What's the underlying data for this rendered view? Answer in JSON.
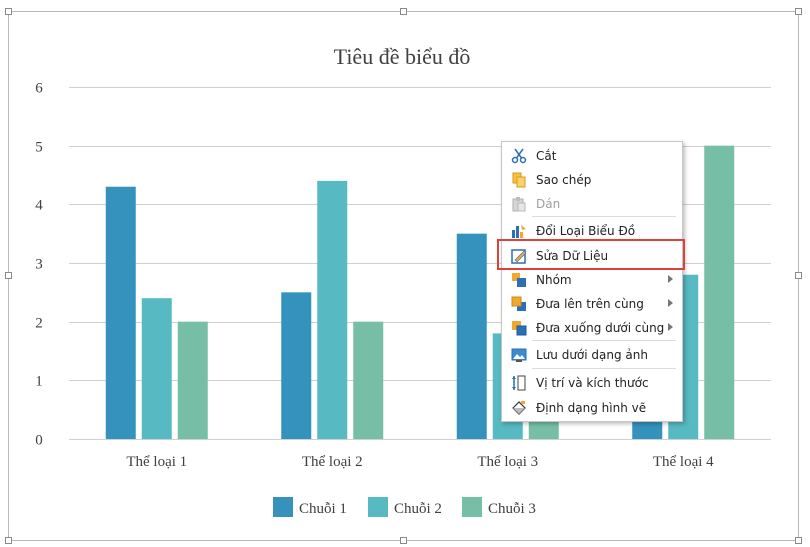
{
  "chart_data": {
    "type": "bar",
    "title": "Tiêu đề biểu đồ",
    "categories": [
      "Thể loại 1",
      "Thể loại 2",
      "Thể loại 3",
      "Thể loại 4"
    ],
    "series": [
      {
        "name": "Chuỗi 1",
        "values": [
          4.3,
          2.5,
          3.5,
          4.5
        ],
        "color": "#3592bd"
      },
      {
        "name": "Chuỗi 2",
        "values": [
          2.4,
          4.4,
          1.8,
          2.8
        ],
        "color": "#57b9c2"
      },
      {
        "name": "Chuỗi 3",
        "values": [
          2,
          2,
          3,
          5
        ],
        "color": "#76bfa6"
      }
    ],
    "ylim": [
      0,
      6
    ],
    "yticks": [
      0,
      1,
      2,
      3,
      4,
      5,
      6
    ],
    "grid": true,
    "legend": "bottom",
    "xlabel": "",
    "ylabel": ""
  },
  "context_menu": {
    "items": [
      {
        "label": "Cắt",
        "icon": "scissors-icon",
        "enabled": true,
        "submenu": false
      },
      {
        "label": "Sao chép",
        "icon": "copy-icon",
        "enabled": true,
        "submenu": false
      },
      {
        "label": "Dán",
        "icon": "paste-icon",
        "enabled": false,
        "submenu": false
      },
      {
        "label": "Đổi Loại Biểu Đồ",
        "icon": "change-chart-type-icon",
        "enabled": true,
        "submenu": false
      },
      {
        "label": "Sửa Dữ Liệu",
        "icon": "edit-data-icon",
        "enabled": true,
        "submenu": false,
        "highlighted": true
      },
      {
        "label": "Nhóm",
        "icon": "group-icon",
        "enabled": true,
        "submenu": true
      },
      {
        "label": "Đưa lên trên cùng",
        "icon": "bring-to-front-icon",
        "enabled": true,
        "submenu": true
      },
      {
        "label": "Đưa xuống dưới cùng",
        "icon": "send-to-back-icon",
        "enabled": true,
        "submenu": true
      },
      {
        "label": "Lưu dưới dạng ảnh",
        "icon": "save-as-picture-icon",
        "enabled": true,
        "submenu": false
      },
      {
        "label": "Vị trí và kích thước",
        "icon": "position-size-icon",
        "enabled": true,
        "submenu": false
      },
      {
        "label": "Định dạng hình vẽ",
        "icon": "format-shape-icon",
        "enabled": true,
        "submenu": false
      }
    ]
  }
}
